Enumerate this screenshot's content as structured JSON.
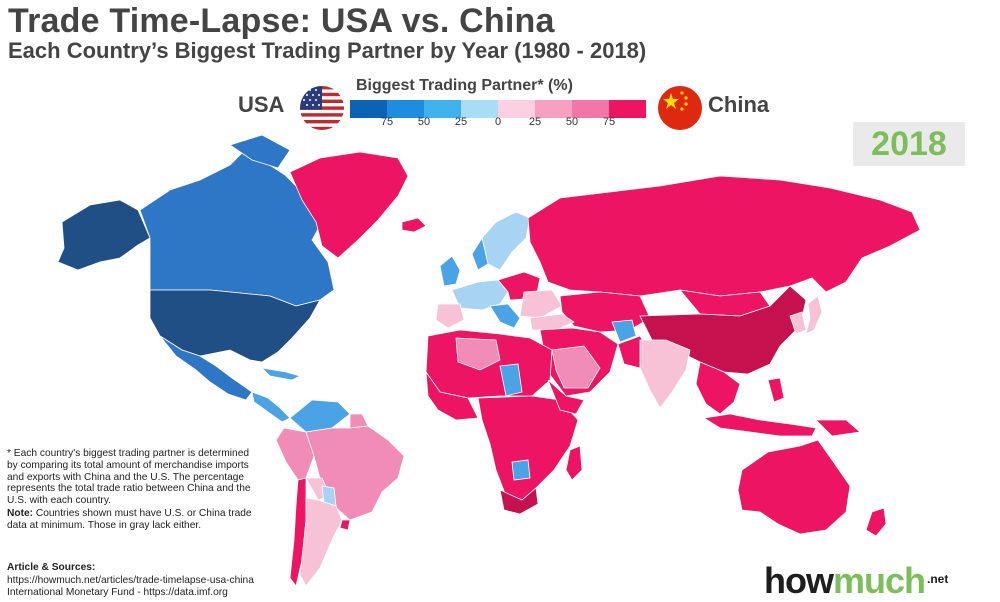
{
  "header": {
    "title": "Trade Time-Lapse: USA vs. China",
    "subtitle": "Each Country’s Biggest Trading Partner by Year (1980 - 2018)"
  },
  "legend": {
    "title": "Biggest Trading Partner* (%)",
    "left_label": "USA",
    "right_label": "China",
    "ticks": [
      "75",
      "50",
      "25",
      "0",
      "25",
      "50",
      "75"
    ],
    "colors": [
      "#0a63b4",
      "#1e8de0",
      "#3fb1ec",
      "#a9dcf7",
      "#fbd0e0",
      "#f7a0c2",
      "#f376a8",
      "#ec1463"
    ],
    "left_flag_icon": "usa-flag-icon",
    "right_flag_icon": "china-flag-icon"
  },
  "year": "2018",
  "map_colors": {
    "usa_strong": "#1f4f85",
    "usa_high": "#2e77c6",
    "usa_mid": "#4aa3e4",
    "usa_low": "#a7d4f2",
    "china_low": "#f8c2d6",
    "china_mid": "#f08cb5",
    "china_high": "#ec1463",
    "china_strong": "#c6114f",
    "no_data": "#cfcfcf"
  },
  "notes": {
    "footnote": "* Each country's biggest trading partner is determined by comparing its total amount of merchandise imports and exports with China and the U.S. The percentage represents the total trade ratio between China and the U.S. with each country.",
    "note_label": "Note:",
    "note_text": " Countries shown must have U.S. or China trade data at minimum. Those in gray lack either."
  },
  "sources": {
    "label": "Article & Sources:",
    "line1": "https://howmuch.net/articles/trade-timelapse-usa-china",
    "line2": "International Monetary Fund - https://data.imf.org"
  },
  "logo": {
    "part1": "how",
    "part2": "much",
    "suffix": ".net"
  }
}
